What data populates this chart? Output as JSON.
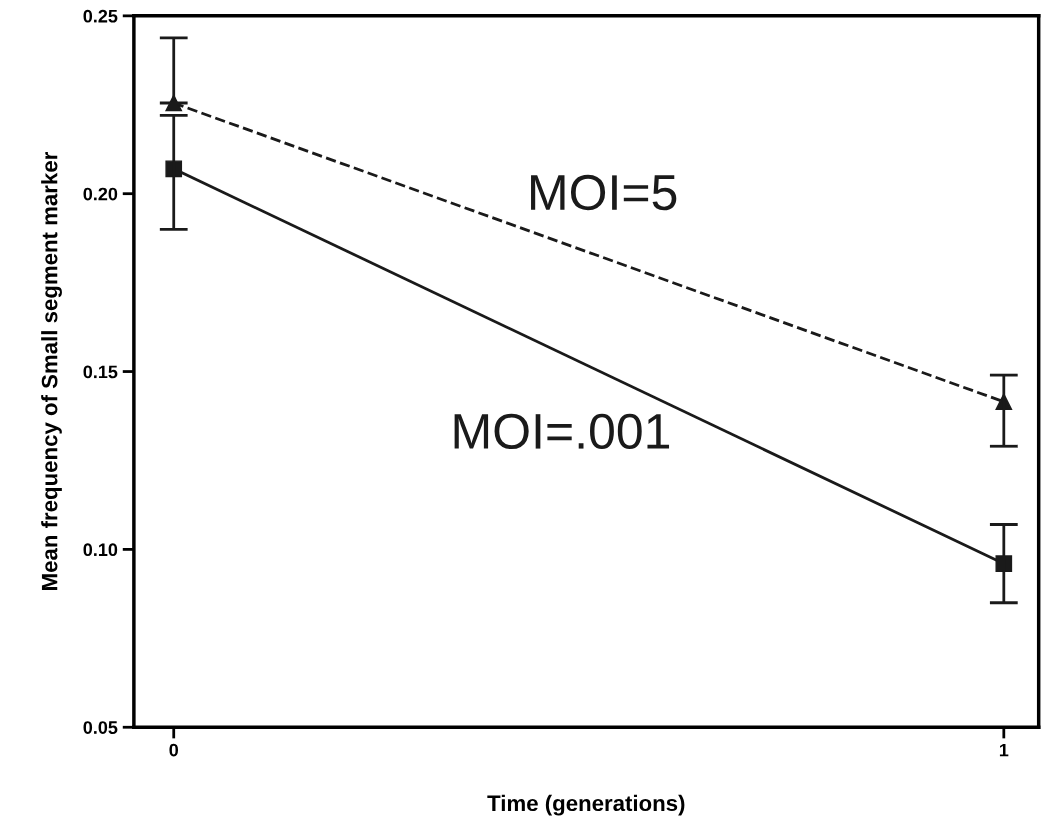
{
  "chart_data": {
    "type": "line",
    "xlabel": "Time (generations)",
    "ylabel": "Mean frequency of Small segment marker",
    "x": [
      0,
      1
    ],
    "series": [
      {
        "name": "MOI=5",
        "color": "#1a1a1a",
        "values": [
          0.2255,
          0.1415
        ],
        "errors": [
          [
            0.2255,
            0.2438
          ],
          [
            0.129,
            0.149
          ]
        ],
        "marker": "triangle",
        "line_style": "dashed"
      },
      {
        "name": "MOI=.001",
        "color": "#1a1a1a",
        "values": [
          0.207,
          0.096
        ],
        "errors": [
          [
            0.19,
            0.222
          ],
          [
            0.085,
            0.107
          ]
        ],
        "marker": "square",
        "line_style": "solid"
      }
    ],
    "xlim": [
      -0.048,
      1.042
    ],
    "ylim": [
      0.05,
      0.25
    ],
    "xticks": [
      0,
      1
    ],
    "yticks": [
      {
        "value": 0.05,
        "label": "0.05"
      },
      {
        "value": 0.1,
        "label": "0.10"
      },
      {
        "value": 0.15,
        "label": "0.15"
      },
      {
        "value": 0.2,
        "label": "0.20"
      },
      {
        "value": 0.25,
        "label": "0.25"
      }
    ],
    "grid": false
  }
}
